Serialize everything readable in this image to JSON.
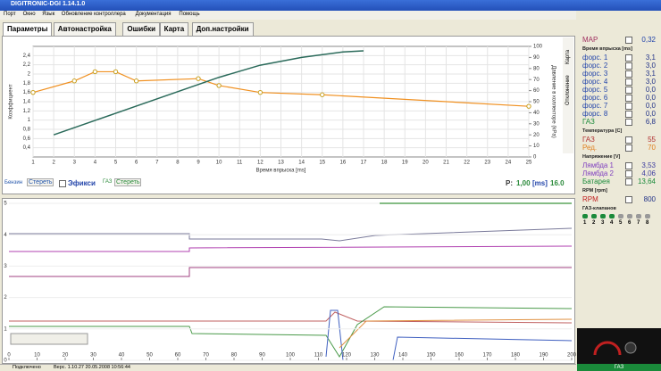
{
  "window": {
    "title": "DIGITRONIC-DGI    1.14.1.0"
  },
  "menu": [
    "Порт",
    "Окно",
    "Язык",
    "Обновление контроллера",
    "Документация",
    "Помощь"
  ],
  "tabs": [
    "Параметры",
    "Автонастройка",
    "Ошибки",
    "Карта",
    "Доп.настройки"
  ],
  "side_tabs": [
    "Карта",
    "Отклонение"
  ],
  "map_chart": {
    "type": "line",
    "y_label": "Коэффициент",
    "y2_label": "Давление в коллекторе (kPa)",
    "x_label": "Время впрыска [ms]",
    "xlim": [
      1,
      25
    ],
    "xticks": [
      1,
      2,
      3,
      4,
      5,
      6,
      7,
      8,
      9,
      10,
      11,
      12,
      13,
      14,
      15,
      16,
      17,
      18,
      19,
      20,
      21,
      22,
      23,
      24,
      25
    ],
    "ylim": [
      0.2,
      2.6
    ],
    "yticks": [
      {
        "value": 0.4,
        "label": "0,4"
      },
      {
        "value": 0.6,
        "label": "0,6"
      },
      {
        "value": 0.8,
        "label": "0,8"
      },
      {
        "value": 1,
        "label": "1"
      },
      {
        "value": 1.2,
        "label": "1,2"
      },
      {
        "value": 1.4,
        "label": "1,4"
      },
      {
        "value": 1.6,
        "label": "1,6"
      },
      {
        "value": 1.8,
        "label": "1,8"
      },
      {
        "value": 2,
        "label": "2"
      },
      {
        "value": 2.2,
        "label": "2,2"
      },
      {
        "value": 2.4,
        "label": "2,4"
      }
    ],
    "y2lim": [
      0,
      100
    ],
    "y2ticks": [
      0,
      10,
      20,
      30,
      40,
      50,
      60,
      70,
      80,
      90,
      100
    ],
    "series": [
      {
        "color": "#f09020",
        "x": [
          1,
          3,
          4,
          5,
          6,
          9,
          10,
          12,
          15,
          25
        ],
        "values": [
          1.6,
          1.85,
          2.05,
          2.05,
          1.85,
          1.9,
          1.75,
          1.6,
          1.55,
          1.3
        ]
      },
      {
        "color": "#2a6a5a",
        "axis": "y2",
        "x": [
          2,
          4,
          6,
          8,
          10,
          12,
          14,
          16,
          17
        ],
        "values": [
          20,
          33,
          46,
          59,
          72,
          83,
          90,
          95,
          96
        ]
      }
    ]
  },
  "map_controls": {
    "petrol": "Бензин",
    "petrol_clear": "Стереть",
    "ecu": "Эфикси",
    "gas": "ГАЗ",
    "gas_clear": "Стереть",
    "p_label": "P:",
    "p_value": "1,00",
    "p_unit": "[ms]",
    "p_max": "16.0"
  },
  "trace_chart": {
    "xlim": [
      0,
      200
    ],
    "xticks": [
      0,
      10,
      20,
      30,
      40,
      50,
      60,
      70,
      80,
      90,
      100,
      110,
      120,
      130,
      140,
      150,
      160,
      170,
      180,
      190,
      200
    ],
    "ylim": [
      0,
      5
    ],
    "yticks": [
      0,
      1,
      2,
      3,
      4,
      5
    ]
  },
  "status": {
    "state": "Подключено",
    "version": "Верс. 1.10.27   20.05.2008   10:56:44"
  },
  "panel": {
    "map": {
      "label": "MAP",
      "value": "0,32"
    },
    "injection": {
      "header": "Время впрыска [ms]",
      "rows": [
        {
          "label": "форс. 1",
          "value": "3,1"
        },
        {
          "label": "форс. 2",
          "value": "3,0"
        },
        {
          "label": "форс. 3",
          "value": "3,1"
        },
        {
          "label": "форс. 4",
          "value": "3,0"
        },
        {
          "label": "форс. 5",
          "value": "0,0"
        },
        {
          "label": "форс. 6",
          "value": "0,0"
        },
        {
          "label": "форс. 7",
          "value": "0,0"
        },
        {
          "label": "форс. 8",
          "value": "0,0"
        },
        {
          "label": "ГАЗ",
          "value": "6,8"
        }
      ]
    },
    "temperature": {
      "header": "Температура [C]",
      "rows": [
        {
          "label": "ГАЗ",
          "value": "55"
        },
        {
          "label": "Ред.",
          "value": "70"
        }
      ]
    },
    "voltage": {
      "header": "Напряжение [V]",
      "rows": [
        {
          "label": "Лямбда 1",
          "value": "3,53"
        },
        {
          "label": "Лямбда 2",
          "value": "4,06"
        },
        {
          "label": "Батарея",
          "value": "13,64"
        }
      ]
    },
    "rpm": {
      "header": "RPM [rpm]",
      "rows": [
        {
          "label": "RPM",
          "value": "800"
        }
      ]
    },
    "valves": {
      "header": "ГАЗ-клапанов",
      "labels": [
        "1",
        "2",
        "3",
        "4",
        "5",
        "6",
        "7",
        "8"
      ]
    },
    "fuel": "ГАЗ"
  }
}
